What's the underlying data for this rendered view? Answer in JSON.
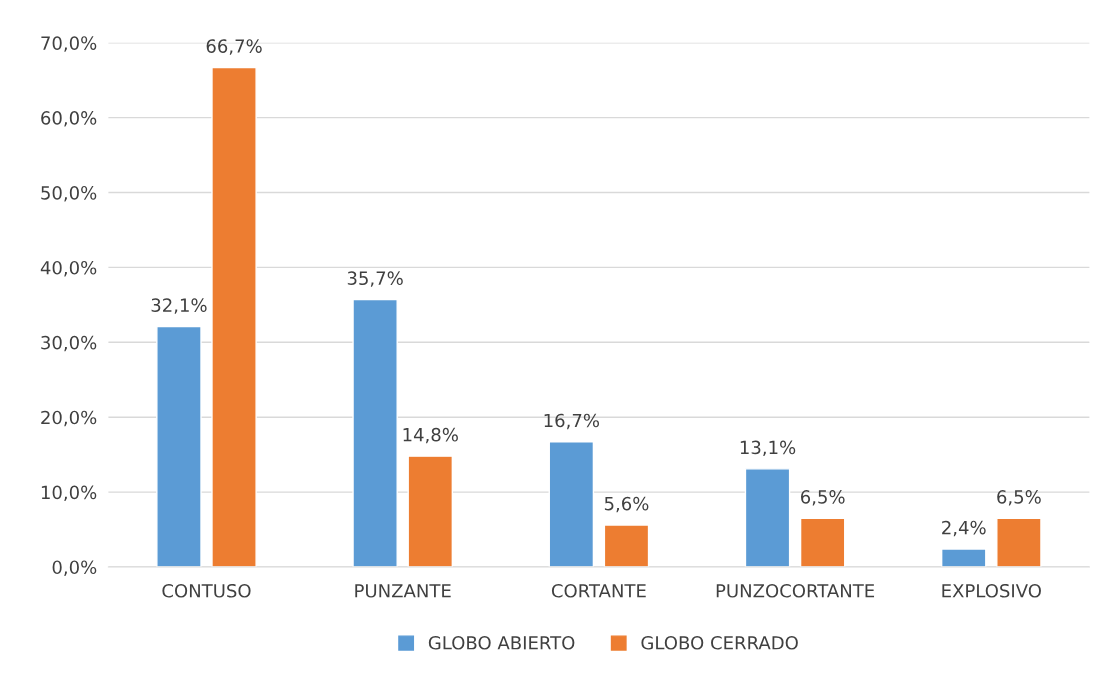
{
  "chart_data": {
    "type": "bar",
    "categories": [
      "CONTUSO",
      "PUNZANTE",
      "CORTANTE",
      "PUNZOCORTANTE",
      "EXPLOSIVO"
    ],
    "series": [
      {
        "name": "GLOBO ABIERTO",
        "color": "#5b9bd5",
        "values": [
          32.1,
          35.7,
          16.7,
          13.1,
          2.4
        ],
        "value_labels": [
          "32,1%",
          "35,7%",
          "16,7%",
          "13,1%",
          "2,4%"
        ]
      },
      {
        "name": "GLOBO CERRADO",
        "color": "#ed7d31",
        "values": [
          66.7,
          14.8,
          5.6,
          6.5,
          6.5
        ],
        "value_labels": [
          "66,7%",
          "14,8%",
          "5,6%",
          "6,5%",
          "6,5%"
        ]
      }
    ],
    "ylim": [
      0,
      70
    ],
    "yticks": [
      {
        "value": 0,
        "label": "0,0%"
      },
      {
        "value": 10,
        "label": "10,0%"
      },
      {
        "value": 20,
        "label": "20,0%"
      },
      {
        "value": 30,
        "label": "30,0%"
      },
      {
        "value": 40,
        "label": "40,0%"
      },
      {
        "value": 50,
        "label": "50,0%"
      },
      {
        "value": 60,
        "label": "60,0%"
      },
      {
        "value": 70,
        "label": "70,0%"
      }
    ],
    "grid": "y",
    "legend": "bottom"
  }
}
